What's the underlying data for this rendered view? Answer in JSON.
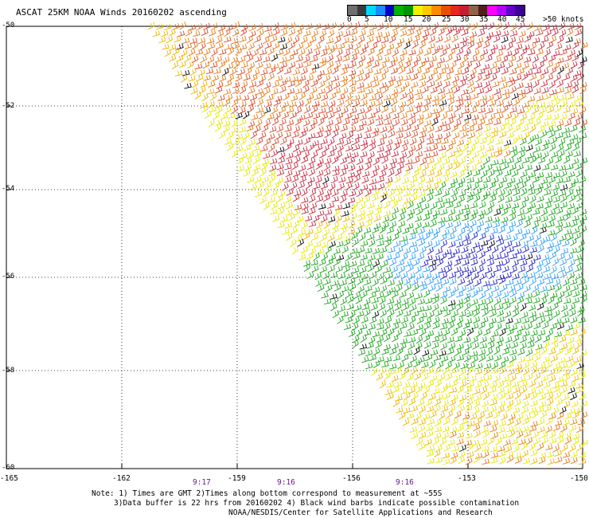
{
  "title": "ASCAT 25KM NOAA Winds 20160202 ascending",
  "legend": {
    "units": ">50 knots",
    "ticks": [
      "0",
      "5",
      "10",
      "15",
      "20",
      "25",
      "30",
      "35",
      "40",
      "45"
    ],
    "colors": [
      "#6e6e6e",
      "#3a3a3a",
      "#00d8ff",
      "#1a8cff",
      "#0000c8",
      "#00b400",
      "#009600",
      "#f0f000",
      "#ffc800",
      "#ff8c00",
      "#e65000",
      "#e6281e",
      "#c81e32",
      "#8c6446",
      "#501e1e",
      "#ff00ff",
      "#b400ff",
      "#6400c8",
      "#3c0096"
    ]
  },
  "axes": {
    "lat_labels": [
      "-50",
      "-52",
      "-54",
      "-56",
      "-58",
      "-60"
    ],
    "lon_labels": [
      "-165",
      "-162",
      "-159",
      "-156",
      "-153",
      "-150"
    ]
  },
  "times": [
    "9:17",
    "9:16",
    "9:16"
  ],
  "notes": {
    "line1": "Note: 1) Times are GMT 2)Times along bottom correspond to measurement at ~55S",
    "line2": "3)Data buffer is 22 hrs from 20160202 4) Black wind barbs indicate possible contamination",
    "line3": "NOAA/NESDIS/Center for Satellite Applications and Research"
  },
  "wind_colors": {
    "low_blue": "#1e1ec8",
    "mid_blue": "#2a9cff",
    "green": "#19a519",
    "yellow": "#e6e600",
    "orange_yellow": "#f0b400",
    "orange": "#e67814",
    "red_orange": "#dc4628",
    "crimson": "#c8283c",
    "contamination": "#000000"
  }
}
